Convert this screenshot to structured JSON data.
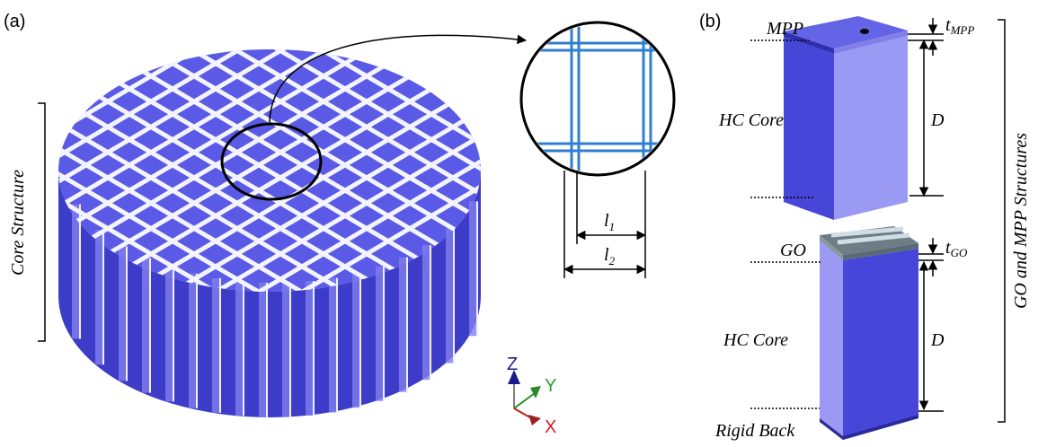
{
  "panel_a": {
    "label": "(a)",
    "bracket_label": "Core Structure",
    "zoom_labels": {
      "l1": {
        "symbol": "l",
        "subscript": "1"
      },
      "l2": {
        "symbol": "l",
        "subscript": "2"
      }
    },
    "axes": {
      "z": "Z",
      "y": "Y",
      "x": "X"
    }
  },
  "panel_b": {
    "label": "(b)",
    "bracket_label": "GO and MPP Structures",
    "top_structure": {
      "layer": "MPP",
      "thickness": {
        "symbol": "t",
        "subscript": "MPP"
      },
      "core": "HC Core",
      "depth": "D"
    },
    "bottom_structure": {
      "layer": "GO",
      "thickness": {
        "symbol": "t",
        "subscript": "GO"
      },
      "core": "HC Core",
      "depth": "D",
      "back": "Rigid Back"
    }
  }
}
